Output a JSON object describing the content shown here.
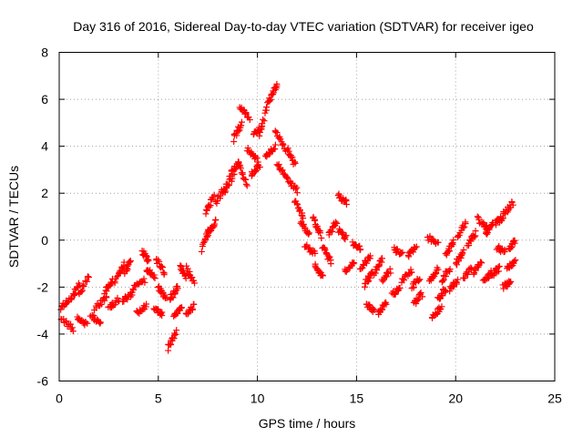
{
  "chart_data": {
    "type": "scatter",
    "title": "Day 316 of 2016, Sidereal Day-to-day VTEC variation (SDTVAR) for receiver igeo",
    "xlabel": "GPS time / hours",
    "ylabel": "SDTVAR / TECUs",
    "xlim": [
      0,
      25
    ],
    "ylim": [
      -6,
      8
    ],
    "xticks": [
      0,
      5,
      10,
      15,
      20,
      25
    ],
    "yticks": [
      -6,
      -4,
      -2,
      0,
      2,
      4,
      6,
      8
    ],
    "xtick_labels": [
      "0",
      "5",
      "10",
      "15",
      "20",
      "25"
    ],
    "ytick_labels": [
      "-6",
      "-4",
      "-2",
      "0",
      "2",
      "4",
      "6",
      "8"
    ],
    "grid": true,
    "marker": "+",
    "color": "#ff0000",
    "series": [
      {
        "name": "SDTVAR",
        "clusters": [
          {
            "x": [
              0.1,
              0.7
            ],
            "y": [
              -3.3,
              -3.8
            ]
          },
          {
            "x": [
              0.1,
              0.6
            ],
            "y": [
              -2.9,
              -2.4
            ]
          },
          {
            "x": [
              0.6,
              1.0
            ],
            "y": [
              -2.5,
              -1.9
            ]
          },
          {
            "x": [
              0.9,
              1.4
            ],
            "y": [
              -3.3,
              -3.6
            ]
          },
          {
            "x": [
              1.0,
              1.5
            ],
            "y": [
              -2.3,
              -1.5
            ]
          },
          {
            "x": [
              1.6,
              2.1
            ],
            "y": [
              -3.2,
              -3.6
            ]
          },
          {
            "x": [
              1.8,
              2.4
            ],
            "y": [
              -2.9,
              -2.4
            ]
          },
          {
            "x": [
              2.3,
              2.7
            ],
            "y": [
              -2.2,
              -1.7
            ]
          },
          {
            "x": [
              2.5,
              3.0
            ],
            "y": [
              -2.9,
              -2.5
            ]
          },
          {
            "x": [
              2.8,
              3.3
            ],
            "y": [
              -1.8,
              -1.0
            ]
          },
          {
            "x": [
              3.2,
              3.7
            ],
            "y": [
              -2.6,
              -2.3
            ]
          },
          {
            "x": [
              3.3,
              3.6
            ],
            "y": [
              -1.4,
              -0.9
            ]
          },
          {
            "x": [
              3.7,
              4.3
            ],
            "y": [
              -2.1,
              -1.7
            ]
          },
          {
            "x": [
              3.9,
              4.4
            ],
            "y": [
              -3.1,
              -2.8
            ]
          },
          {
            "x": [
              4.2,
              4.5
            ],
            "y": [
              -0.5,
              -0.9
            ]
          },
          {
            "x": [
              4.4,
              4.8
            ],
            "y": [
              -1.2,
              -1.6
            ]
          },
          {
            "x": [
              4.8,
              5.2
            ],
            "y": [
              -2.9,
              -3.2
            ]
          },
          {
            "x": [
              4.9,
              5.3
            ],
            "y": [
              -0.8,
              -1.4
            ]
          },
          {
            "x": [
              5.0,
              5.4
            ],
            "y": [
              -2.0,
              -2.5
            ]
          },
          {
            "x": [
              5.5,
              5.9
            ],
            "y": [
              -4.6,
              -3.9
            ]
          },
          {
            "x": [
              5.6,
              6.0
            ],
            "y": [
              -2.5,
              -2.0
            ]
          },
          {
            "x": [
              5.8,
              6.2
            ],
            "y": [
              -3.2,
              -2.9
            ]
          },
          {
            "x": [
              6.1,
              6.4
            ],
            "y": [
              -1.1,
              -1.6
            ]
          },
          {
            "x": [
              6.4,
              6.8
            ],
            "y": [
              -3.2,
              -2.8
            ]
          },
          {
            "x": [
              6.4,
              6.8
            ],
            "y": [
              -1.2,
              -1.8
            ]
          },
          {
            "x": [
              7.2,
              7.6
            ],
            "y": [
              -0.4,
              0.5
            ]
          },
          {
            "x": [
              7.4,
              7.8
            ],
            "y": [
              1.2,
              1.9
            ]
          },
          {
            "x": [
              7.5,
              7.9
            ],
            "y": [
              0.3,
              0.8
            ]
          },
          {
            "x": [
              7.9,
              8.4
            ],
            "y": [
              1.6,
              2.3
            ]
          },
          {
            "x": [
              8.3,
              8.8
            ],
            "y": [
              2.0,
              2.8
            ]
          },
          {
            "x": [
              8.6,
              9.1
            ],
            "y": [
              2.8,
              3.3
            ]
          },
          {
            "x": [
              8.8,
              9.2
            ],
            "y": [
              4.3,
              5.0
            ]
          },
          {
            "x": [
              9.0,
              9.5
            ],
            "y": [
              3.3,
              2.4
            ]
          },
          {
            "x": [
              9.1,
              9.6
            ],
            "y": [
              5.7,
              5.2
            ]
          },
          {
            "x": [
              9.5,
              10.0
            ],
            "y": [
              3.9,
              3.4
            ]
          },
          {
            "x": [
              9.7,
              10.1
            ],
            "y": [
              2.8,
              3.2
            ]
          },
          {
            "x": [
              9.8,
              10.2
            ],
            "y": [
              4.5,
              4.8
            ]
          },
          {
            "x": [
              10.1,
              10.6
            ],
            "y": [
              4.5,
              6.0
            ]
          },
          {
            "x": [
              10.4,
              10.9
            ],
            "y": [
              3.6,
              4.0
            ]
          },
          {
            "x": [
              10.6,
              11.0
            ],
            "y": [
              6.0,
              6.6
            ]
          },
          {
            "x": [
              10.9,
              11.4
            ],
            "y": [
              4.6,
              3.9
            ]
          },
          {
            "x": [
              11.0,
              11.5
            ],
            "y": [
              3.2,
              2.7
            ]
          },
          {
            "x": [
              11.5,
              11.9
            ],
            "y": [
              3.9,
              3.2
            ]
          },
          {
            "x": [
              11.5,
              12.0
            ],
            "y": [
              2.6,
              2.1
            ]
          },
          {
            "x": [
              11.9,
              12.3
            ],
            "y": [
              1.7,
              1.0
            ]
          },
          {
            "x": [
              12.2,
              12.6
            ],
            "y": [
              0.8,
              0.2
            ]
          },
          {
            "x": [
              12.4,
              12.9
            ],
            "y": [
              -0.2,
              -0.6
            ]
          },
          {
            "x": [
              12.8,
              13.2
            ],
            "y": [
              0.9,
              0.2
            ]
          },
          {
            "x": [
              12.9,
              13.3
            ],
            "y": [
              -1.1,
              -1.6
            ]
          },
          {
            "x": [
              13.3,
              13.7
            ],
            "y": [
              -0.3,
              -0.9
            ]
          },
          {
            "x": [
              13.6,
              14.0
            ],
            "y": [
              0.2,
              0.8
            ]
          },
          {
            "x": [
              14.1,
              14.5
            ],
            "y": [
              1.9,
              1.6
            ]
          },
          {
            "x": [
              14.1,
              14.5
            ],
            "y": [
              0.4,
              0.1
            ]
          },
          {
            "x": [
              14.4,
              14.9
            ],
            "y": [
              -1.3,
              -0.9
            ]
          },
          {
            "x": [
              14.8,
              15.2
            ],
            "y": [
              -0.1,
              -0.4
            ]
          },
          {
            "x": [
              15.2,
              15.7
            ],
            "y": [
              -1.2,
              -0.7
            ]
          },
          {
            "x": [
              15.4,
              15.8
            ],
            "y": [
              -1.9,
              -1.4
            ]
          },
          {
            "x": [
              15.5,
              15.9
            ],
            "y": [
              -2.7,
              -3.0
            ]
          },
          {
            "x": [
              15.9,
              16.3
            ],
            "y": [
              -1.4,
              -0.8
            ]
          },
          {
            "x": [
              16.1,
              16.5
            ],
            "y": [
              -3.1,
              -2.7
            ]
          },
          {
            "x": [
              16.3,
              16.7
            ],
            "y": [
              -1.7,
              -1.3
            ]
          },
          {
            "x": [
              16.8,
              17.2
            ],
            "y": [
              -2.3,
              -2.0
            ]
          },
          {
            "x": [
              16.9,
              17.3
            ],
            "y": [
              -0.4,
              -0.6
            ]
          },
          {
            "x": [
              17.3,
              17.8
            ],
            "y": [
              -1.7,
              -1.3
            ]
          },
          {
            "x": [
              17.6,
              18.0
            ],
            "y": [
              -0.7,
              -0.3
            ]
          },
          {
            "x": [
              17.8,
              18.2
            ],
            "y": [
              -2.0,
              -1.6
            ]
          },
          {
            "x": [
              17.9,
              18.3
            ],
            "y": [
              -2.7,
              -2.3
            ]
          },
          {
            "x": [
              18.6,
              19.1
            ],
            "y": [
              0.1,
              -0.1
            ]
          },
          {
            "x": [
              18.7,
              19.1
            ],
            "y": [
              -1.7,
              -1.2
            ]
          },
          {
            "x": [
              18.8,
              19.3
            ],
            "y": [
              -3.3,
              -2.8
            ]
          },
          {
            "x": [
              19.1,
              19.5
            ],
            "y": [
              -2.5,
              -2.1
            ]
          },
          {
            "x": [
              19.3,
              19.7
            ],
            "y": [
              -1.7,
              -1.2
            ]
          },
          {
            "x": [
              19.5,
              19.9
            ],
            "y": [
              -0.6,
              -0.1
            ]
          },
          {
            "x": [
              19.7,
              20.1
            ],
            "y": [
              -2.1,
              -1.7
            ]
          },
          {
            "x": [
              20.0,
              20.4
            ],
            "y": [
              -1.0,
              -0.5
            ]
          },
          {
            "x": [
              20.1,
              20.5
            ],
            "y": [
              0.2,
              0.7
            ]
          },
          {
            "x": [
              20.4,
              20.8
            ],
            "y": [
              -1.6,
              -1.2
            ]
          },
          {
            "x": [
              20.6,
              21.0
            ],
            "y": [
              -0.2,
              0.3
            ]
          },
          {
            "x": [
              20.9,
              21.3
            ],
            "y": [
              -1.4,
              -0.9
            ]
          },
          {
            "x": [
              21.1,
              21.6
            ],
            "y": [
              0.9,
              0.5
            ]
          },
          {
            "x": [
              21.4,
              21.8
            ],
            "y": [
              -1.8,
              -1.4
            ]
          },
          {
            "x": [
              21.5,
              21.9
            ],
            "y": [
              0.2,
              0.8
            ]
          },
          {
            "x": [
              21.8,
              22.2
            ],
            "y": [
              -1.5,
              -1.2
            ]
          },
          {
            "x": [
              22.0,
              22.4
            ],
            "y": [
              0.7,
              1.0
            ]
          },
          {
            "x": [
              22.1,
              22.5
            ],
            "y": [
              -0.3,
              -0.5
            ]
          },
          {
            "x": [
              22.4,
              22.8
            ],
            "y": [
              -2.0,
              -1.7
            ]
          },
          {
            "x": [
              22.4,
              22.9
            ],
            "y": [
              1.1,
              1.6
            ]
          },
          {
            "x": [
              22.7,
              23.0
            ],
            "y": [
              -0.3,
              -0.1
            ]
          },
          {
            "x": [
              22.6,
              23.0
            ],
            "y": [
              -1.2,
              -0.9
            ]
          }
        ]
      }
    ]
  }
}
